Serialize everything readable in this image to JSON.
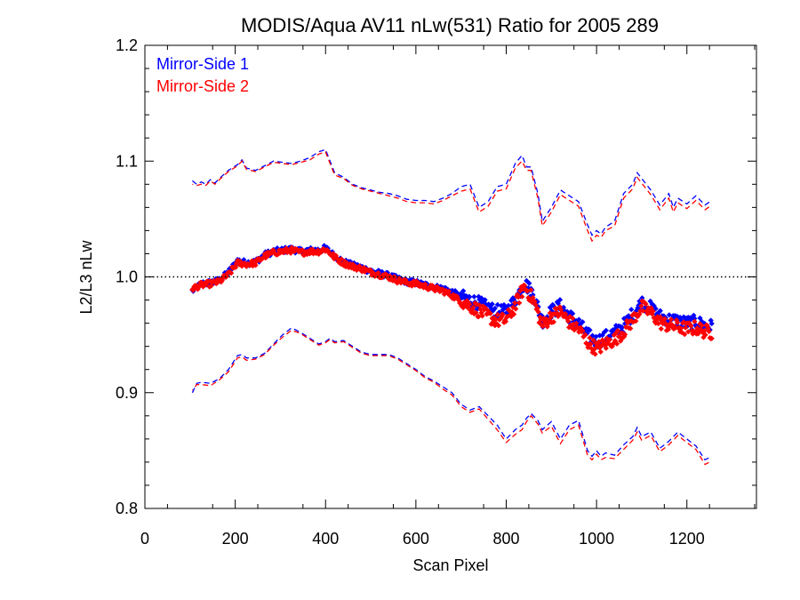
{
  "chart_data": {
    "type": "scatter",
    "title": "MODIS/Aqua AV11 nLw(531) Ratio for 2005 289",
    "xlabel": "Scan Pixel",
    "ylabel": "L2/L3 nLw",
    "xlim": [
      0,
      1354
    ],
    "ylim": [
      0.8,
      1.2
    ],
    "x_ticks": [
      0,
      200,
      400,
      600,
      800,
      1000,
      1200
    ],
    "x_tick_labels": [
      "0",
      "200",
      "400",
      "600",
      "800",
      "1000",
      "1200"
    ],
    "y_ticks": [
      0.8,
      0.9,
      1.0,
      1.1,
      1.2
    ],
    "y_tick_labels": [
      "0.8",
      "0.9",
      "1.0",
      "1.1",
      "1.2"
    ],
    "reference_line": {
      "y": 1.0,
      "style": "dotted"
    },
    "grid": false,
    "legend_position": "top-left",
    "colors": {
      "ms1": "#0000ff",
      "ms2": "#ff0000",
      "axis": "#000000"
    },
    "legend": [
      {
        "label": "Mirror-Side 1",
        "color": "#0000ff"
      },
      {
        "label": "Mirror-Side 2",
        "color": "#ff0000"
      }
    ],
    "series": [
      {
        "name": "Mirror-Side 1",
        "color": "#0000ff",
        "mean": {
          "x": [
            105,
            125,
            145,
            165,
            185,
            205,
            225,
            245,
            265,
            285,
            305,
            325,
            345,
            365,
            385,
            400,
            420,
            440,
            460,
            480,
            500,
            520,
            540,
            560,
            580,
            600,
            620,
            640,
            660,
            680,
            700,
            720,
            740,
            760,
            780,
            800,
            820,
            840,
            860,
            880,
            900,
            920,
            940,
            960,
            980,
            1000,
            1020,
            1040,
            1060,
            1080,
            1100,
            1120,
            1140,
            1160,
            1180,
            1200,
            1220,
            1240,
            1255
          ],
          "y": [
            0.988,
            0.994,
            0.995,
            0.997,
            1.004,
            1.014,
            1.012,
            1.013,
            1.019,
            1.022,
            1.023,
            1.024,
            1.022,
            1.023,
            1.023,
            1.025,
            1.018,
            1.013,
            1.01,
            1.008,
            1.005,
            1.003,
            1.001,
            0.998,
            0.996,
            0.995,
            0.993,
            0.991,
            0.99,
            0.987,
            0.983,
            0.98,
            0.977,
            0.973,
            0.97,
            0.97,
            0.98,
            0.995,
            0.985,
            0.962,
            0.97,
            0.975,
            0.966,
            0.96,
            0.95,
            0.944,
            0.948,
            0.952,
            0.958,
            0.968,
            0.978,
            0.973,
            0.966,
            0.963,
            0.962,
            0.96,
            0.961,
            0.958,
            0.957
          ]
        },
        "upper": {
          "x": [
            105,
            115,
            125,
            135,
            145,
            155,
            165,
            185,
            205,
            215,
            225,
            245,
            265,
            285,
            305,
            325,
            345,
            365,
            385,
            400,
            410,
            420,
            440,
            460,
            480,
            500,
            520,
            540,
            560,
            580,
            600,
            620,
            640,
            660,
            680,
            700,
            720,
            740,
            760,
            780,
            800,
            820,
            835,
            845,
            855,
            870,
            880,
            900,
            920,
            940,
            960,
            980,
            990,
            1000,
            1010,
            1020,
            1040,
            1060,
            1080,
            1090,
            1100,
            1120,
            1140,
            1160,
            1170,
            1180,
            1200,
            1220,
            1240,
            1255
          ],
          "y": [
            1.083,
            1.08,
            1.082,
            1.08,
            1.084,
            1.081,
            1.085,
            1.092,
            1.097,
            1.101,
            1.094,
            1.092,
            1.096,
            1.1,
            1.099,
            1.098,
            1.1,
            1.103,
            1.108,
            1.11,
            1.1,
            1.09,
            1.086,
            1.08,
            1.077,
            1.075,
            1.073,
            1.072,
            1.07,
            1.067,
            1.066,
            1.066,
            1.065,
            1.068,
            1.072,
            1.078,
            1.08,
            1.06,
            1.065,
            1.078,
            1.08,
            1.098,
            1.105,
            1.095,
            1.095,
            1.072,
            1.048,
            1.06,
            1.075,
            1.07,
            1.065,
            1.045,
            1.036,
            1.04,
            1.037,
            1.043,
            1.048,
            1.072,
            1.08,
            1.09,
            1.085,
            1.075,
            1.062,
            1.072,
            1.06,
            1.068,
            1.063,
            1.07,
            1.062,
            1.066
          ]
        },
        "lower": {
          "x": [
            105,
            115,
            125,
            145,
            165,
            185,
            205,
            215,
            225,
            245,
            265,
            285,
            305,
            325,
            345,
            365,
            385,
            400,
            410,
            420,
            440,
            460,
            480,
            500,
            520,
            540,
            560,
            580,
            600,
            620,
            640,
            660,
            680,
            700,
            720,
            740,
            760,
            780,
            800,
            820,
            835,
            845,
            855,
            870,
            880,
            900,
            920,
            940,
            960,
            980,
            990,
            1000,
            1010,
            1020,
            1040,
            1060,
            1080,
            1090,
            1100,
            1120,
            1140,
            1160,
            1180,
            1200,
            1220,
            1240,
            1255
          ],
          "y": [
            0.9,
            0.908,
            0.909,
            0.908,
            0.912,
            0.92,
            0.932,
            0.933,
            0.93,
            0.93,
            0.934,
            0.942,
            0.95,
            0.956,
            0.952,
            0.947,
            0.942,
            0.944,
            0.947,
            0.944,
            0.945,
            0.94,
            0.935,
            0.933,
            0.933,
            0.933,
            0.93,
            0.925,
            0.92,
            0.914,
            0.91,
            0.905,
            0.9,
            0.89,
            0.885,
            0.888,
            0.88,
            0.872,
            0.86,
            0.868,
            0.872,
            0.878,
            0.882,
            0.876,
            0.868,
            0.875,
            0.86,
            0.872,
            0.876,
            0.85,
            0.845,
            0.85,
            0.845,
            0.848,
            0.846,
            0.855,
            0.862,
            0.87,
            0.862,
            0.866,
            0.852,
            0.858,
            0.866,
            0.86,
            0.854,
            0.842,
            0.845
          ]
        }
      },
      {
        "name": "Mirror-Side 2",
        "color": "#ff0000",
        "mean": {
          "x": [
            105,
            125,
            145,
            165,
            185,
            205,
            225,
            245,
            265,
            285,
            305,
            325,
            345,
            365,
            385,
            400,
            420,
            440,
            460,
            480,
            500,
            520,
            540,
            560,
            580,
            600,
            620,
            640,
            660,
            680,
            700,
            720,
            740,
            760,
            780,
            800,
            820,
            840,
            860,
            880,
            900,
            920,
            940,
            960,
            980,
            1000,
            1020,
            1040,
            1060,
            1080,
            1100,
            1120,
            1140,
            1160,
            1180,
            1200,
            1220,
            1240,
            1255
          ],
          "y": [
            0.99,
            0.993,
            0.994,
            0.996,
            1.002,
            1.012,
            1.011,
            1.012,
            1.018,
            1.021,
            1.022,
            1.023,
            1.021,
            1.022,
            1.022,
            1.024,
            1.017,
            1.012,
            1.009,
            1.007,
            1.004,
            1.002,
            1.0,
            0.997,
            0.995,
            0.994,
            0.992,
            0.99,
            0.988,
            0.984,
            0.979,
            0.975,
            0.971,
            0.966,
            0.962,
            0.963,
            0.975,
            0.992,
            0.98,
            0.958,
            0.966,
            0.97,
            0.961,
            0.955,
            0.944,
            0.938,
            0.942,
            0.946,
            0.953,
            0.963,
            0.974,
            0.969,
            0.961,
            0.958,
            0.957,
            0.955,
            0.956,
            0.953,
            0.952
          ]
        },
        "upper": {
          "x": [
            105,
            115,
            125,
            135,
            145,
            155,
            165,
            185,
            205,
            215,
            225,
            245,
            265,
            285,
            305,
            325,
            345,
            365,
            385,
            400,
            410,
            420,
            440,
            460,
            480,
            500,
            520,
            540,
            560,
            580,
            600,
            620,
            640,
            660,
            680,
            700,
            720,
            740,
            760,
            780,
            800,
            820,
            835,
            845,
            855,
            870,
            880,
            900,
            920,
            940,
            960,
            980,
            990,
            1000,
            1010,
            1020,
            1040,
            1060,
            1080,
            1090,
            1100,
            1120,
            1140,
            1160,
            1170,
            1180,
            1200,
            1220,
            1240,
            1255
          ],
          "y": [
            1.08,
            1.079,
            1.08,
            1.079,
            1.083,
            1.08,
            1.084,
            1.091,
            1.096,
            1.1,
            1.093,
            1.091,
            1.095,
            1.099,
            1.098,
            1.097,
            1.099,
            1.101,
            1.106,
            1.108,
            1.098,
            1.088,
            1.085,
            1.079,
            1.076,
            1.074,
            1.072,
            1.07,
            1.068,
            1.065,
            1.064,
            1.064,
            1.063,
            1.066,
            1.07,
            1.074,
            1.076,
            1.056,
            1.061,
            1.074,
            1.076,
            1.094,
            1.1,
            1.092,
            1.092,
            1.068,
            1.044,
            1.056,
            1.071,
            1.066,
            1.061,
            1.04,
            1.031,
            1.036,
            1.034,
            1.04,
            1.044,
            1.068,
            1.076,
            1.086,
            1.081,
            1.071,
            1.058,
            1.068,
            1.056,
            1.064,
            1.059,
            1.066,
            1.058,
            1.062
          ]
        },
        "lower": {
          "x": [
            105,
            115,
            125,
            145,
            165,
            185,
            205,
            215,
            225,
            245,
            265,
            285,
            305,
            325,
            345,
            365,
            385,
            400,
            410,
            420,
            440,
            460,
            480,
            500,
            520,
            540,
            560,
            580,
            600,
            620,
            640,
            660,
            680,
            700,
            720,
            740,
            760,
            780,
            800,
            820,
            835,
            845,
            855,
            870,
            880,
            900,
            920,
            940,
            960,
            980,
            990,
            1000,
            1010,
            1020,
            1040,
            1060,
            1080,
            1090,
            1100,
            1120,
            1140,
            1160,
            1180,
            1200,
            1220,
            1240,
            1255
          ],
          "y": [
            0.902,
            0.907,
            0.907,
            0.906,
            0.911,
            0.918,
            0.93,
            0.931,
            0.928,
            0.929,
            0.933,
            0.941,
            0.948,
            0.954,
            0.951,
            0.946,
            0.941,
            0.943,
            0.946,
            0.943,
            0.944,
            0.939,
            0.934,
            0.932,
            0.932,
            0.932,
            0.929,
            0.924,
            0.919,
            0.913,
            0.909,
            0.903,
            0.898,
            0.888,
            0.883,
            0.886,
            0.877,
            0.868,
            0.857,
            0.864,
            0.868,
            0.875,
            0.88,
            0.873,
            0.865,
            0.871,
            0.856,
            0.868,
            0.872,
            0.846,
            0.842,
            0.847,
            0.842,
            0.844,
            0.843,
            0.851,
            0.859,
            0.866,
            0.859,
            0.863,
            0.849,
            0.855,
            0.863,
            0.857,
            0.851,
            0.838,
            0.841
          ]
        }
      }
    ]
  }
}
